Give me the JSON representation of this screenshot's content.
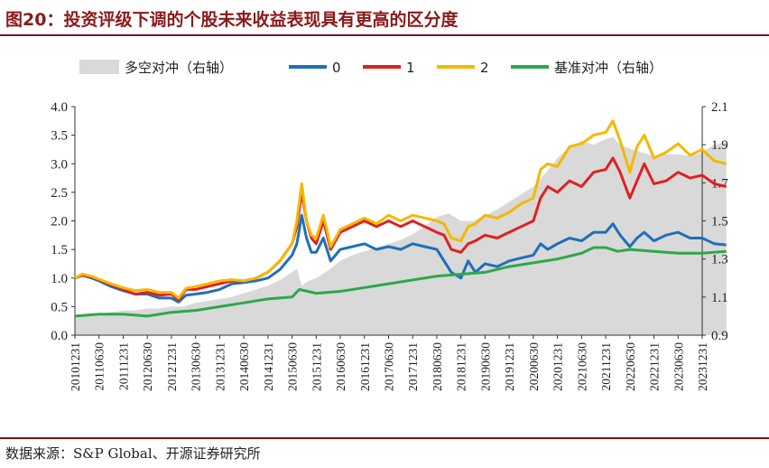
{
  "title": "图20：投资评级下调的个股未来收益表现具有更高的区分度",
  "source": "数据来源：S&P Global、开源证券研究所",
  "chart_data": {
    "type": "line",
    "title": "投资评级下调的个股未来收益表现具有更高的区分度",
    "legend_position": "top",
    "grid": false,
    "y_left": {
      "ylim": [
        0,
        4.0
      ],
      "ticks": [
        "0.0",
        "0.5",
        "1.0",
        "1.5",
        "2.0",
        "2.5",
        "3.0",
        "3.5",
        "4.0"
      ]
    },
    "y_right": {
      "ylim": [
        0.9,
        2.1
      ],
      "ticks": [
        "0.9",
        "1.1",
        "1.3",
        "1.5",
        "1.7",
        "1.9",
        "2.1"
      ]
    },
    "x_ticks": [
      "20101231",
      "20110630",
      "20111231",
      "20120630",
      "20121231",
      "20130630",
      "20131231",
      "20140630",
      "20141231",
      "20150630",
      "20151231",
      "20160630",
      "20161231",
      "20170630",
      "20171231",
      "20180630",
      "20181231",
      "20190630",
      "20191231",
      "20200630",
      "20201231",
      "20210630",
      "20211231",
      "20220630",
      "20221231",
      "20230630",
      "20231231"
    ],
    "series": [
      {
        "name": "多空对冲（右轴）",
        "type": "area",
        "axis": "right",
        "color": "#d9d9d9",
        "values": [
          [
            0,
            1.0
          ],
          [
            0.5,
            1.0
          ],
          [
            1,
            1.01
          ],
          [
            1.5,
            1.02
          ],
          [
            2,
            1.03
          ],
          [
            2.5,
            1.03
          ],
          [
            3,
            1.04
          ],
          [
            3.5,
            1.04
          ],
          [
            4,
            1.05
          ],
          [
            4.5,
            1.05
          ],
          [
            5,
            1.07
          ],
          [
            5.5,
            1.08
          ],
          [
            6,
            1.09
          ],
          [
            6.5,
            1.1
          ],
          [
            7,
            1.12
          ],
          [
            7.5,
            1.14
          ],
          [
            8,
            1.16
          ],
          [
            8.5,
            1.19
          ],
          [
            9,
            1.23
          ],
          [
            9.2,
            1.25
          ],
          [
            9.4,
            1.16
          ],
          [
            9.6,
            1.18
          ],
          [
            10,
            1.2
          ],
          [
            10.5,
            1.24
          ],
          [
            11,
            1.29
          ],
          [
            11.5,
            1.32
          ],
          [
            12,
            1.34
          ],
          [
            12.5,
            1.36
          ],
          [
            13,
            1.38
          ],
          [
            13.5,
            1.4
          ],
          [
            14,
            1.43
          ],
          [
            14.5,
            1.47
          ],
          [
            15,
            1.52
          ],
          [
            15.5,
            1.54
          ],
          [
            16,
            1.5
          ],
          [
            16.5,
            1.5
          ],
          [
            17,
            1.53
          ],
          [
            17.5,
            1.56
          ],
          [
            18,
            1.6
          ],
          [
            18.5,
            1.64
          ],
          [
            19,
            1.68
          ],
          [
            19.5,
            1.75
          ],
          [
            20,
            1.83
          ],
          [
            20.5,
            1.89
          ],
          [
            21,
            1.92
          ],
          [
            21.5,
            1.9
          ],
          [
            22,
            1.93
          ],
          [
            22.3,
            1.94
          ],
          [
            22.6,
            1.9
          ],
          [
            23,
            1.88
          ],
          [
            23.5,
            1.86
          ],
          [
            24,
            1.84
          ],
          [
            24.5,
            1.85
          ],
          [
            25,
            1.85
          ],
          [
            25.5,
            1.84
          ],
          [
            26,
            1.86
          ],
          [
            26.5,
            1.9
          ],
          [
            27,
            1.91
          ]
        ]
      },
      {
        "name": "0",
        "type": "line",
        "axis": "left",
        "color": "#1f6fb8",
        "values": [
          [
            0,
            1.0
          ],
          [
            0.3,
            1.05
          ],
          [
            0.7,
            1.0
          ],
          [
            1,
            0.95
          ],
          [
            1.5,
            0.85
          ],
          [
            2,
            0.78
          ],
          [
            2.5,
            0.72
          ],
          [
            3,
            0.72
          ],
          [
            3.5,
            0.65
          ],
          [
            4,
            0.65
          ],
          [
            4.3,
            0.58
          ],
          [
            4.6,
            0.7
          ],
          [
            5,
            0.72
          ],
          [
            5.5,
            0.75
          ],
          [
            6,
            0.8
          ],
          [
            6.5,
            0.9
          ],
          [
            7,
            0.92
          ],
          [
            7.5,
            0.95
          ],
          [
            8,
            1.0
          ],
          [
            8.5,
            1.15
          ],
          [
            9,
            1.4
          ],
          [
            9.2,
            1.6
          ],
          [
            9.4,
            2.1
          ],
          [
            9.6,
            1.7
          ],
          [
            9.8,
            1.45
          ],
          [
            10,
            1.45
          ],
          [
            10.3,
            1.7
          ],
          [
            10.6,
            1.3
          ],
          [
            11,
            1.5
          ],
          [
            11.5,
            1.55
          ],
          [
            12,
            1.6
          ],
          [
            12.5,
            1.5
          ],
          [
            13,
            1.55
          ],
          [
            13.5,
            1.5
          ],
          [
            14,
            1.6
          ],
          [
            14.5,
            1.55
          ],
          [
            15,
            1.5
          ],
          [
            15.3,
            1.3
          ],
          [
            15.6,
            1.1
          ],
          [
            16,
            1.0
          ],
          [
            16.3,
            1.3
          ],
          [
            16.6,
            1.1
          ],
          [
            17,
            1.25
          ],
          [
            17.5,
            1.2
          ],
          [
            18,
            1.3
          ],
          [
            18.5,
            1.35
          ],
          [
            19,
            1.4
          ],
          [
            19.3,
            1.6
          ],
          [
            19.6,
            1.5
          ],
          [
            20,
            1.6
          ],
          [
            20.5,
            1.7
          ],
          [
            21,
            1.65
          ],
          [
            21.5,
            1.8
          ],
          [
            22,
            1.8
          ],
          [
            22.3,
            1.95
          ],
          [
            22.6,
            1.75
          ],
          [
            23,
            1.55
          ],
          [
            23.3,
            1.7
          ],
          [
            23.6,
            1.8
          ],
          [
            24,
            1.65
          ],
          [
            24.5,
            1.75
          ],
          [
            25,
            1.8
          ],
          [
            25.5,
            1.7
          ],
          [
            26,
            1.7
          ],
          [
            26.5,
            1.6
          ],
          [
            27,
            1.58
          ]
        ]
      },
      {
        "name": "1",
        "type": "line",
        "axis": "left",
        "color": "#e02020",
        "values": [
          [
            0,
            1.0
          ],
          [
            0.3,
            1.05
          ],
          [
            0.7,
            1.02
          ],
          [
            1,
            0.97
          ],
          [
            1.5,
            0.88
          ],
          [
            2,
            0.8
          ],
          [
            2.5,
            0.72
          ],
          [
            3,
            0.75
          ],
          [
            3.5,
            0.7
          ],
          [
            4,
            0.72
          ],
          [
            4.3,
            0.62
          ],
          [
            4.6,
            0.8
          ],
          [
            5,
            0.8
          ],
          [
            5.5,
            0.85
          ],
          [
            6,
            0.9
          ],
          [
            6.5,
            0.95
          ],
          [
            7,
            0.95
          ],
          [
            7.5,
            1.0
          ],
          [
            8,
            1.1
          ],
          [
            8.5,
            1.3
          ],
          [
            9,
            1.6
          ],
          [
            9.2,
            1.9
          ],
          [
            9.4,
            2.5
          ],
          [
            9.6,
            2.0
          ],
          [
            9.8,
            1.7
          ],
          [
            10,
            1.6
          ],
          [
            10.3,
            2.0
          ],
          [
            10.6,
            1.5
          ],
          [
            11,
            1.8
          ],
          [
            11.5,
            1.9
          ],
          [
            12,
            2.0
          ],
          [
            12.5,
            1.9
          ],
          [
            13,
            2.0
          ],
          [
            13.5,
            1.9
          ],
          [
            14,
            2.0
          ],
          [
            14.5,
            1.9
          ],
          [
            15,
            1.8
          ],
          [
            15.3,
            1.75
          ],
          [
            15.6,
            1.5
          ],
          [
            16,
            1.45
          ],
          [
            16.3,
            1.6
          ],
          [
            16.6,
            1.65
          ],
          [
            17,
            1.75
          ],
          [
            17.5,
            1.7
          ],
          [
            18,
            1.8
          ],
          [
            18.5,
            1.9
          ],
          [
            19,
            2.0
          ],
          [
            19.3,
            2.4
          ],
          [
            19.6,
            2.6
          ],
          [
            20,
            2.5
          ],
          [
            20.5,
            2.7
          ],
          [
            21,
            2.6
          ],
          [
            21.5,
            2.85
          ],
          [
            22,
            2.9
          ],
          [
            22.3,
            3.1
          ],
          [
            22.6,
            2.85
          ],
          [
            23,
            2.4
          ],
          [
            23.3,
            2.7
          ],
          [
            23.6,
            3.0
          ],
          [
            24,
            2.65
          ],
          [
            24.5,
            2.7
          ],
          [
            25,
            2.85
          ],
          [
            25.5,
            2.75
          ],
          [
            26,
            2.8
          ],
          [
            26.5,
            2.65
          ],
          [
            27,
            2.6
          ]
        ]
      },
      {
        "name": "2",
        "type": "line",
        "axis": "left",
        "color": "#f5b800",
        "values": [
          [
            0,
            1.0
          ],
          [
            0.3,
            1.07
          ],
          [
            0.7,
            1.03
          ],
          [
            1,
            0.98
          ],
          [
            1.5,
            0.9
          ],
          [
            2,
            0.83
          ],
          [
            2.5,
            0.78
          ],
          [
            3,
            0.8
          ],
          [
            3.5,
            0.75
          ],
          [
            4,
            0.75
          ],
          [
            4.3,
            0.65
          ],
          [
            4.6,
            0.82
          ],
          [
            5,
            0.85
          ],
          [
            5.5,
            0.9
          ],
          [
            6,
            0.95
          ],
          [
            6.5,
            0.97
          ],
          [
            7,
            0.95
          ],
          [
            7.5,
            1.0
          ],
          [
            8,
            1.1
          ],
          [
            8.5,
            1.3
          ],
          [
            9,
            1.6
          ],
          [
            9.2,
            2.0
          ],
          [
            9.4,
            2.65
          ],
          [
            9.6,
            2.0
          ],
          [
            9.8,
            1.75
          ],
          [
            10,
            1.7
          ],
          [
            10.3,
            2.1
          ],
          [
            10.6,
            1.55
          ],
          [
            11,
            1.85
          ],
          [
            11.5,
            1.95
          ],
          [
            12,
            2.05
          ],
          [
            12.5,
            1.95
          ],
          [
            13,
            2.1
          ],
          [
            13.5,
            2.0
          ],
          [
            14,
            2.1
          ],
          [
            14.5,
            2.05
          ],
          [
            15,
            2.0
          ],
          [
            15.3,
            1.95
          ],
          [
            15.6,
            1.7
          ],
          [
            16,
            1.65
          ],
          [
            16.3,
            1.9
          ],
          [
            16.6,
            1.95
          ],
          [
            17,
            2.1
          ],
          [
            17.5,
            2.05
          ],
          [
            18,
            2.15
          ],
          [
            18.5,
            2.3
          ],
          [
            19,
            2.4
          ],
          [
            19.3,
            2.9
          ],
          [
            19.6,
            3.0
          ],
          [
            20,
            2.95
          ],
          [
            20.5,
            3.3
          ],
          [
            21,
            3.35
          ],
          [
            21.5,
            3.5
          ],
          [
            22,
            3.55
          ],
          [
            22.3,
            3.75
          ],
          [
            22.6,
            3.4
          ],
          [
            23,
            2.85
          ],
          [
            23.3,
            3.3
          ],
          [
            23.6,
            3.5
          ],
          [
            24,
            3.1
          ],
          [
            24.5,
            3.2
          ],
          [
            25,
            3.35
          ],
          [
            25.5,
            3.15
          ],
          [
            26,
            3.25
          ],
          [
            26.5,
            3.05
          ],
          [
            27,
            3.0
          ]
        ]
      },
      {
        "name": "基准对冲（右轴）",
        "type": "line",
        "axis": "right",
        "color": "#2ca84a",
        "values": [
          [
            0,
            1.0
          ],
          [
            1,
            1.01
          ],
          [
            2,
            1.01
          ],
          [
            3,
            1.0
          ],
          [
            4,
            1.02
          ],
          [
            5,
            1.03
          ],
          [
            6,
            1.05
          ],
          [
            7,
            1.07
          ],
          [
            8,
            1.09
          ],
          [
            9,
            1.1
          ],
          [
            9.3,
            1.14
          ],
          [
            10,
            1.12
          ],
          [
            11,
            1.13
          ],
          [
            12,
            1.15
          ],
          [
            13,
            1.17
          ],
          [
            14,
            1.19
          ],
          [
            15,
            1.21
          ],
          [
            16,
            1.22
          ],
          [
            17,
            1.23
          ],
          [
            18,
            1.26
          ],
          [
            19,
            1.28
          ],
          [
            20,
            1.3
          ],
          [
            21,
            1.33
          ],
          [
            21.5,
            1.36
          ],
          [
            22,
            1.36
          ],
          [
            22.5,
            1.34
          ],
          [
            23,
            1.35
          ],
          [
            24,
            1.34
          ],
          [
            25,
            1.33
          ],
          [
            26,
            1.33
          ],
          [
            27,
            1.34
          ]
        ]
      }
    ]
  }
}
